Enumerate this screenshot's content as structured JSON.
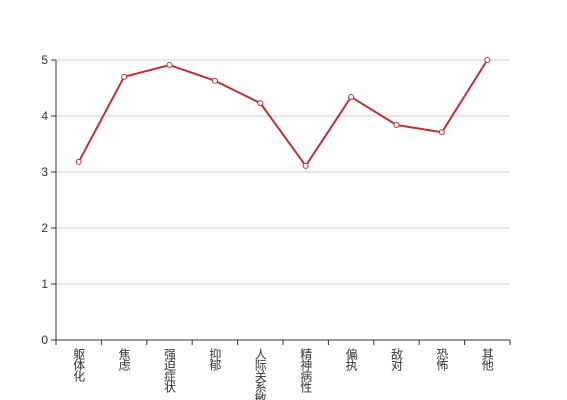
{
  "chart_data": {
    "type": "line",
    "categories": [
      "躯体化",
      "焦虑",
      "强迫症状",
      "抑郁",
      "人际关系敏感",
      "精神病性",
      "偏执",
      "敌对",
      "恐怖",
      "其他"
    ],
    "series": [
      {
        "color": "#b83232",
        "values": [
          3.18,
          4.7,
          4.91,
          4.63,
          4.23,
          3.11,
          4.34,
          3.84,
          3.71,
          5.0
        ]
      }
    ],
    "ylim": [
      0,
      5
    ],
    "yticks": [
      0,
      1,
      2,
      3,
      4,
      5
    ],
    "grid": true
  }
}
